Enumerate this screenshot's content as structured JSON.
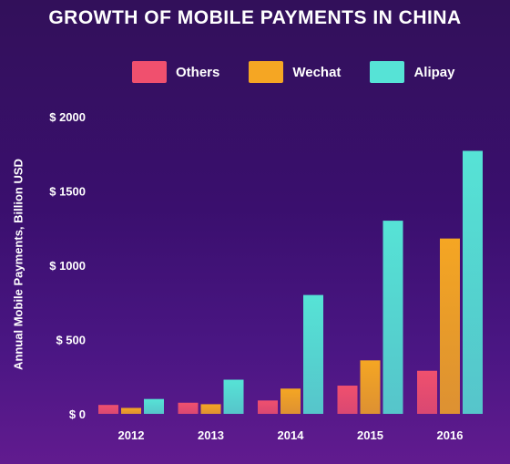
{
  "chart_data": {
    "type": "bar",
    "title": "GROWTH OF MOBILE PAYMENTS IN CHINA",
    "xlabel": "",
    "ylabel": "Annual Mobile Payments, Billion USD",
    "categories": [
      "2012",
      "2013",
      "2014",
      "2015",
      "2016"
    ],
    "series": [
      {
        "name": "Others",
        "color": "#f0506e",
        "values": [
          60,
          75,
          90,
          190,
          290
        ]
      },
      {
        "name": "Wechat",
        "color": "#f5a623",
        "values": [
          40,
          65,
          170,
          360,
          1180
        ]
      },
      {
        "name": "Alipay",
        "color": "#56e3d6",
        "values": [
          100,
          230,
          800,
          1300,
          1770
        ]
      }
    ],
    "ylim": [
      0,
      2000
    ],
    "yticks": [
      0,
      500,
      1000,
      1500,
      2000
    ],
    "ytick_labels": [
      "$ 0",
      "$ 500",
      "$ 1000",
      "$ 1500",
      "$ 2000"
    ],
    "legend": "top-center",
    "grid": false
  }
}
